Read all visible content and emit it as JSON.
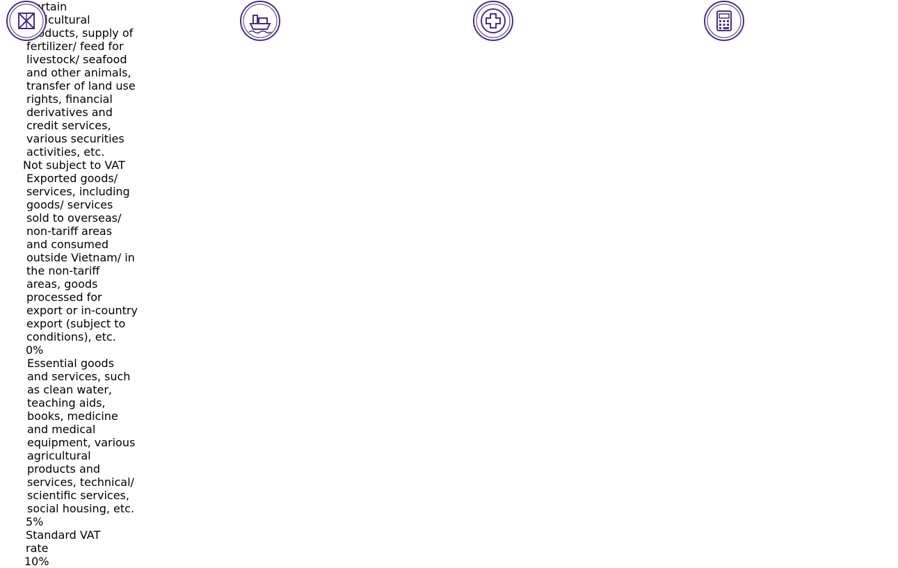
{
  "cards": [
    {
      "title": "Not subject to VAT",
      "lines": [
        "Certain",
        "agricultural",
        "products, supply of",
        "fertilizer/ feed for",
        "livestock/ seafood",
        "and other animals,",
        "transfer of land use",
        "rights, financial",
        "derivatives and",
        "credit services,",
        "various securities",
        "activities, etc."
      ]
    },
    {
      "title": "0%",
      "lines": [
        "Exported goods/",
        "services, including",
        "goods/ services",
        "sold to overseas/",
        "non-tariff areas",
        "and consumed",
        "outside Vietnam/ in",
        "the non-tariff",
        "areas, goods",
        "processed for",
        "export or in-country",
        "export (subject to",
        "conditions), etc."
      ]
    },
    {
      "title": "5%",
      "lines": [
        "Essential goods",
        "and services, such",
        "as clean water,",
        "teaching aids,",
        "books, medicine",
        "and medical",
        "equipment, various",
        "agricultural",
        "products and",
        "services, technical/",
        "scientific services,",
        "social housing, etc."
      ]
    },
    {
      "title": "10%",
      "lines": [
        "Standard VAT",
        "rate"
      ]
    }
  ]
}
